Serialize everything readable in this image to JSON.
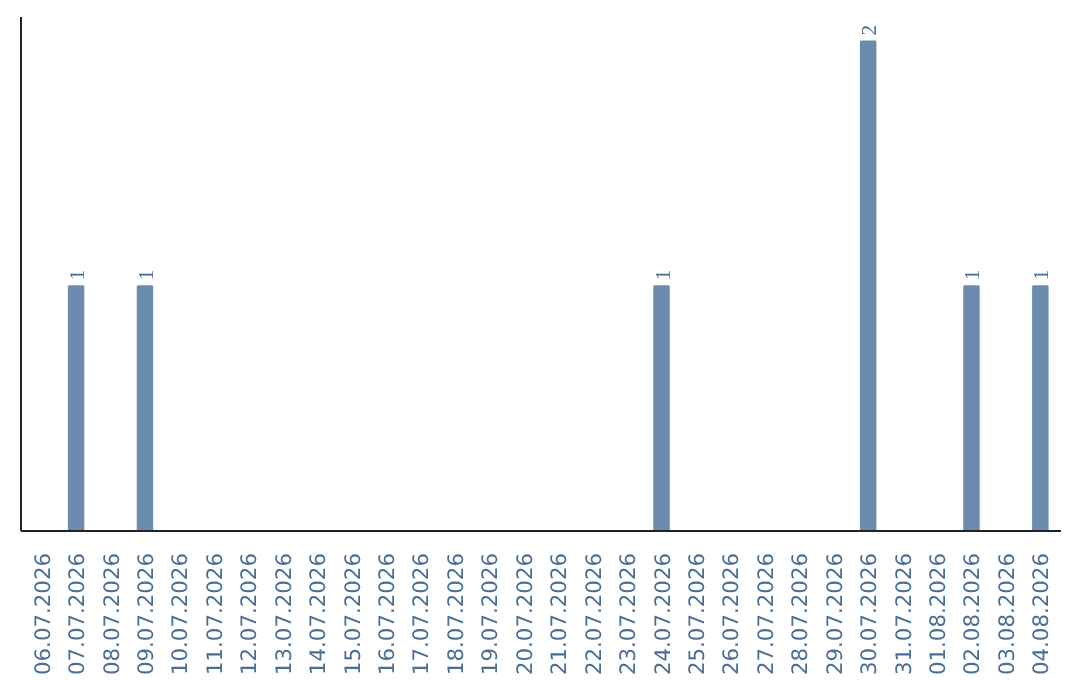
{
  "chart_data": {
    "type": "bar",
    "categories": [
      "06.07.2026",
      "07.07.2026",
      "08.07.2026",
      "09.07.2026",
      "10.07.2026",
      "11.07.2026",
      "12.07.2026",
      "13.07.2026",
      "14.07.2026",
      "15.07.2026",
      "16.07.2026",
      "17.07.2026",
      "18.07.2026",
      "19.07.2026",
      "20.07.2026",
      "21.07.2026",
      "22.07.2026",
      "23.07.2026",
      "24.07.2026",
      "25.07.2026",
      "26.07.2026",
      "27.07.2026",
      "28.07.2026",
      "29.07.2026",
      "30.07.2026",
      "31.07.2026",
      "01.08.2026",
      "02.08.2026",
      "03.08.2026",
      "04.08.2026"
    ],
    "values": [
      0,
      1,
      0,
      1,
      0,
      0,
      0,
      0,
      0,
      0,
      0,
      0,
      0,
      0,
      0,
      0,
      0,
      0,
      1,
      0,
      0,
      0,
      0,
      0,
      2,
      0,
      0,
      1,
      0,
      1
    ],
    "value_labels": [
      null,
      "1",
      null,
      "1",
      null,
      null,
      null,
      null,
      null,
      null,
      null,
      null,
      null,
      null,
      null,
      null,
      null,
      null,
      "1",
      null,
      null,
      null,
      null,
      null,
      "2",
      null,
      null,
      "1",
      null,
      "1"
    ],
    "color": "#6b8cae",
    "ylim": [
      0,
      2.1
    ],
    "tick_labels": "x",
    "grid": false
  }
}
